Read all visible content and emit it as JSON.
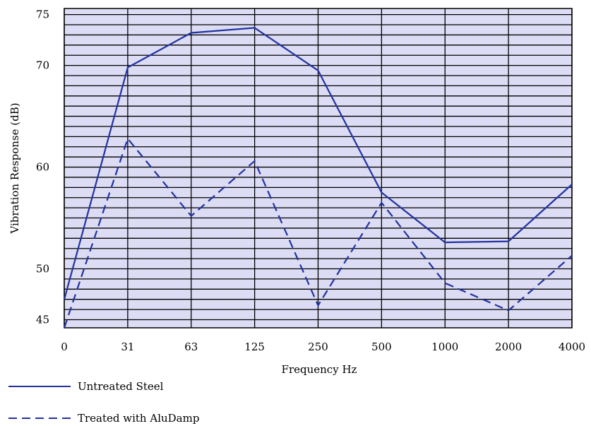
{
  "chart_data": {
    "type": "line",
    "title": "",
    "xlabel": "Frequency Hz",
    "ylabel": "Vibration Response (dB)",
    "categories": [
      "0",
      "31",
      "63",
      "125",
      "250",
      "500",
      "1000",
      "2000",
      "4000"
    ],
    "y_tick_labels": [
      "45",
      "50",
      "60",
      "70",
      "75"
    ],
    "ylim": [
      44.2,
      75.6
    ],
    "grid": true,
    "legend_position": "bottom-left",
    "series": [
      {
        "name": "Untreated Steel",
        "style": "solid",
        "color": "#2233a0",
        "values": [
          47.0,
          69.8,
          73.2,
          73.7,
          69.5,
          57.5,
          52.6,
          52.7,
          58.3
        ]
      },
      {
        "name": "Treated with AluDamp",
        "style": "dashed",
        "color": "#2233a0",
        "values": [
          44.2,
          62.8,
          55.2,
          60.6,
          46.4,
          56.5,
          48.6,
          45.9,
          51.3
        ]
      }
    ],
    "colors": {
      "plot_background": "#dcdcf4",
      "grid": "#000000",
      "line": "#2233a0"
    }
  }
}
